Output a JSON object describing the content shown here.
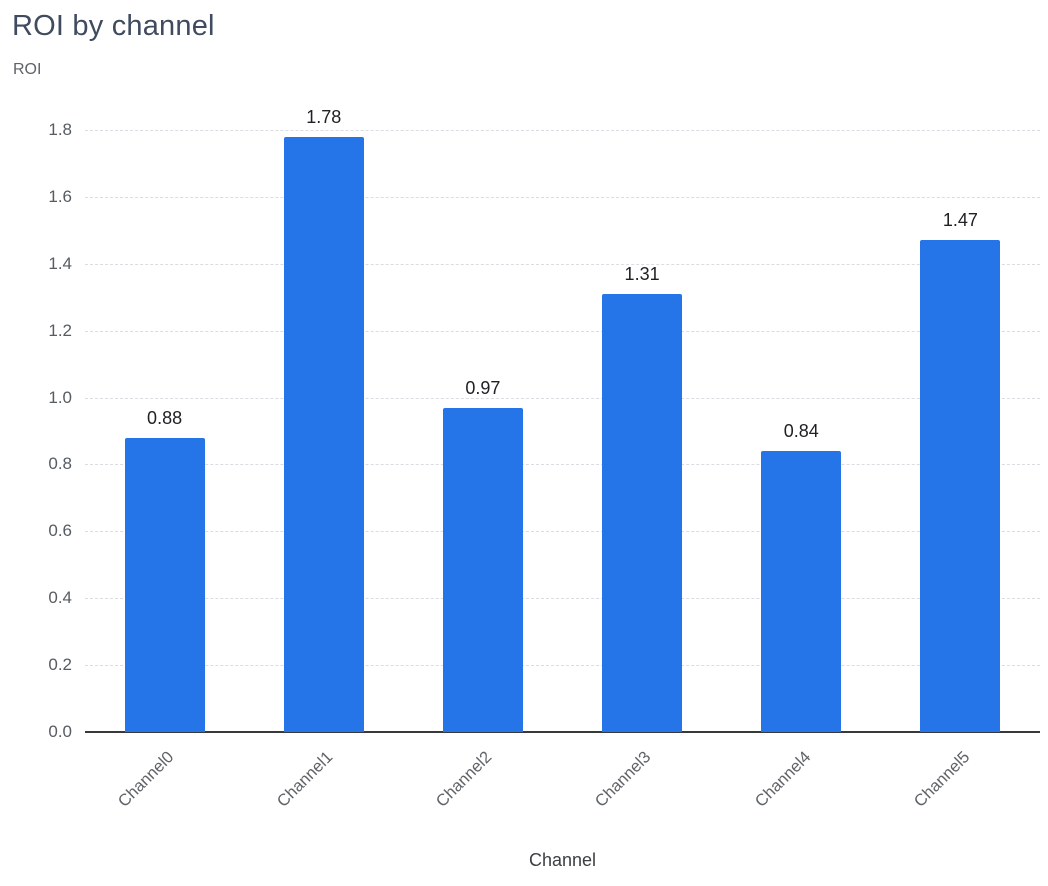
{
  "header": {
    "title": "ROI by channel"
  },
  "chart_data": {
    "type": "bar",
    "title": "ROI by channel",
    "categories": [
      "Channel0",
      "Channel1",
      "Channel2",
      "Channel3",
      "Channel4",
      "Channel5"
    ],
    "values": [
      0.88,
      1.78,
      0.97,
      1.31,
      0.84,
      1.47
    ],
    "value_labels": [
      "0.88",
      "1.78",
      "0.97",
      "1.31",
      "0.84",
      "1.47"
    ],
    "xlabel": "Channel",
    "ylabel": "ROI",
    "ylim": [
      0,
      1.8
    ],
    "ytick_step": 0.2,
    "ytick_labels": [
      "0.0",
      "0.2",
      "0.4",
      "0.6",
      "0.8",
      "1.0",
      "1.2",
      "1.4",
      "1.6",
      "1.8"
    ],
    "grid": "horizontal-dashed",
    "legend": "none",
    "bar_color": "#2575e8",
    "axis_line_color": "#37393b",
    "value_label_color": "#202124",
    "tick_label_color": "#5f6368",
    "title_color": "#404b5f"
  }
}
